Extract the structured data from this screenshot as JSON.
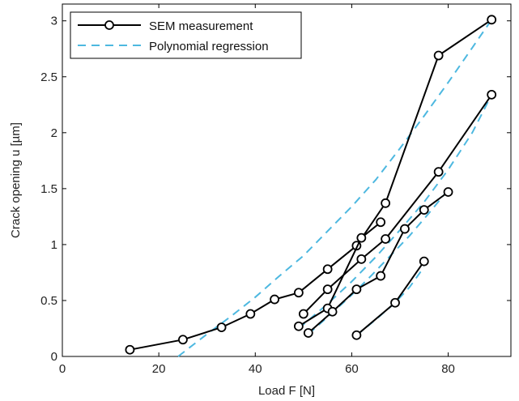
{
  "chart_data": {
    "type": "line",
    "xlabel": "Load F [N]",
    "ylabel": "Crack opening u [µm]",
    "xlim": [
      0,
      93
    ],
    "ylim": [
      0,
      3.15
    ],
    "xticks": [
      0,
      20,
      40,
      60,
      80
    ],
    "yticks": [
      0,
      0.5,
      1,
      1.5,
      2,
      2.5,
      3
    ],
    "xtick_labels": [
      "0",
      "20",
      "40",
      "60",
      "80"
    ],
    "ytick_labels": [
      "0",
      "0.5",
      "1",
      "1.5",
      "2",
      "2.5",
      "3"
    ],
    "grid": false,
    "legend_position": "top-left",
    "legend": [
      {
        "label": "SEM measurement",
        "style": "solid-circle"
      },
      {
        "label": "Polynomial regression",
        "style": "dashed"
      }
    ],
    "colors": {
      "measurement": "#000000",
      "regression": "#4db8e0"
    },
    "measurement_series": [
      {
        "x": [
          14,
          25,
          33,
          39,
          44,
          49,
          55,
          61,
          67,
          78,
          89
        ],
        "y": [
          0.06,
          0.15,
          0.26,
          0.38,
          0.51,
          0.57,
          0.78,
          0.99,
          1.37,
          2.69,
          3.01
        ]
      },
      {
        "x": [
          50,
          55,
          62,
          67,
          78,
          89
        ],
        "y": [
          0.38,
          0.6,
          0.87,
          1.05,
          1.65,
          2.34
        ]
      },
      {
        "x": [
          49,
          55,
          62,
          66
        ],
        "y": [
          0.27,
          0.43,
          1.06,
          1.2
        ]
      },
      {
        "x": [
          51,
          56,
          61,
          66,
          71,
          75,
          80
        ],
        "y": [
          0.21,
          0.4,
          0.6,
          0.72,
          1.14,
          1.31,
          1.47
        ]
      },
      {
        "x": [
          61,
          69,
          75
        ],
        "y": [
          0.19,
          0.48,
          0.85
        ]
      }
    ],
    "regression_series": [
      {
        "x": [
          24,
          30,
          35,
          40,
          45,
          50,
          55,
          60,
          65,
          70,
          75,
          80,
          85,
          89
        ],
        "y": [
          0.0,
          0.2,
          0.36,
          0.53,
          0.72,
          0.9,
          1.12,
          1.34,
          1.58,
          1.86,
          2.15,
          2.45,
          2.76,
          3.01
        ]
      },
      {
        "x": [
          49,
          55,
          60,
          65,
          70,
          75,
          80,
          85,
          89
        ],
        "y": [
          0.25,
          0.47,
          0.67,
          0.89,
          1.13,
          1.38,
          1.67,
          2.0,
          2.34
        ]
      },
      {
        "x": [
          51,
          56,
          60,
          64,
          68,
          72,
          76,
          80
        ],
        "y": [
          0.2,
          0.39,
          0.55,
          0.72,
          0.9,
          1.08,
          1.28,
          1.49
        ]
      },
      {
        "x": [
          61,
          65,
          69,
          72,
          75
        ],
        "y": [
          0.19,
          0.33,
          0.48,
          0.62,
          0.8
        ]
      }
    ]
  }
}
